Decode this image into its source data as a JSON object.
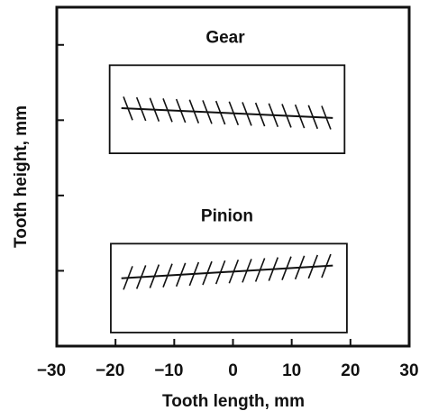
{
  "chart_data": {
    "type": "contact-pattern",
    "xlabel": "Tooth length, mm",
    "ylabel": "Tooth height, mm",
    "xlim": [
      -30,
      30
    ],
    "xticks": [
      {
        "value": -30,
        "label": "−30"
      },
      {
        "value": -20,
        "label": "−20"
      },
      {
        "value": -10,
        "label": "−10"
      },
      0,
      10,
      20,
      30
    ],
    "ylim": [
      0,
      4.5
    ],
    "yticks": [
      0,
      1,
      2,
      3,
      4
    ],
    "patterns": [
      {
        "name": "Gear",
        "box": {
          "x": [
            -21,
            19
          ],
          "y": [
            2.56,
            3.73
          ]
        },
        "x": [
          -19,
          17
        ],
        "y": [
          3.16,
          3.03
        ],
        "hatch": "back"
      },
      {
        "name": "Pinion",
        "box": {
          "x": [
            -20.8,
            19.4
          ],
          "y": [
            0.18,
            1.36
          ]
        },
        "x": [
          -19,
          17
        ],
        "y": [
          0.9,
          1.07
        ],
        "hatch": "forward"
      }
    ]
  }
}
